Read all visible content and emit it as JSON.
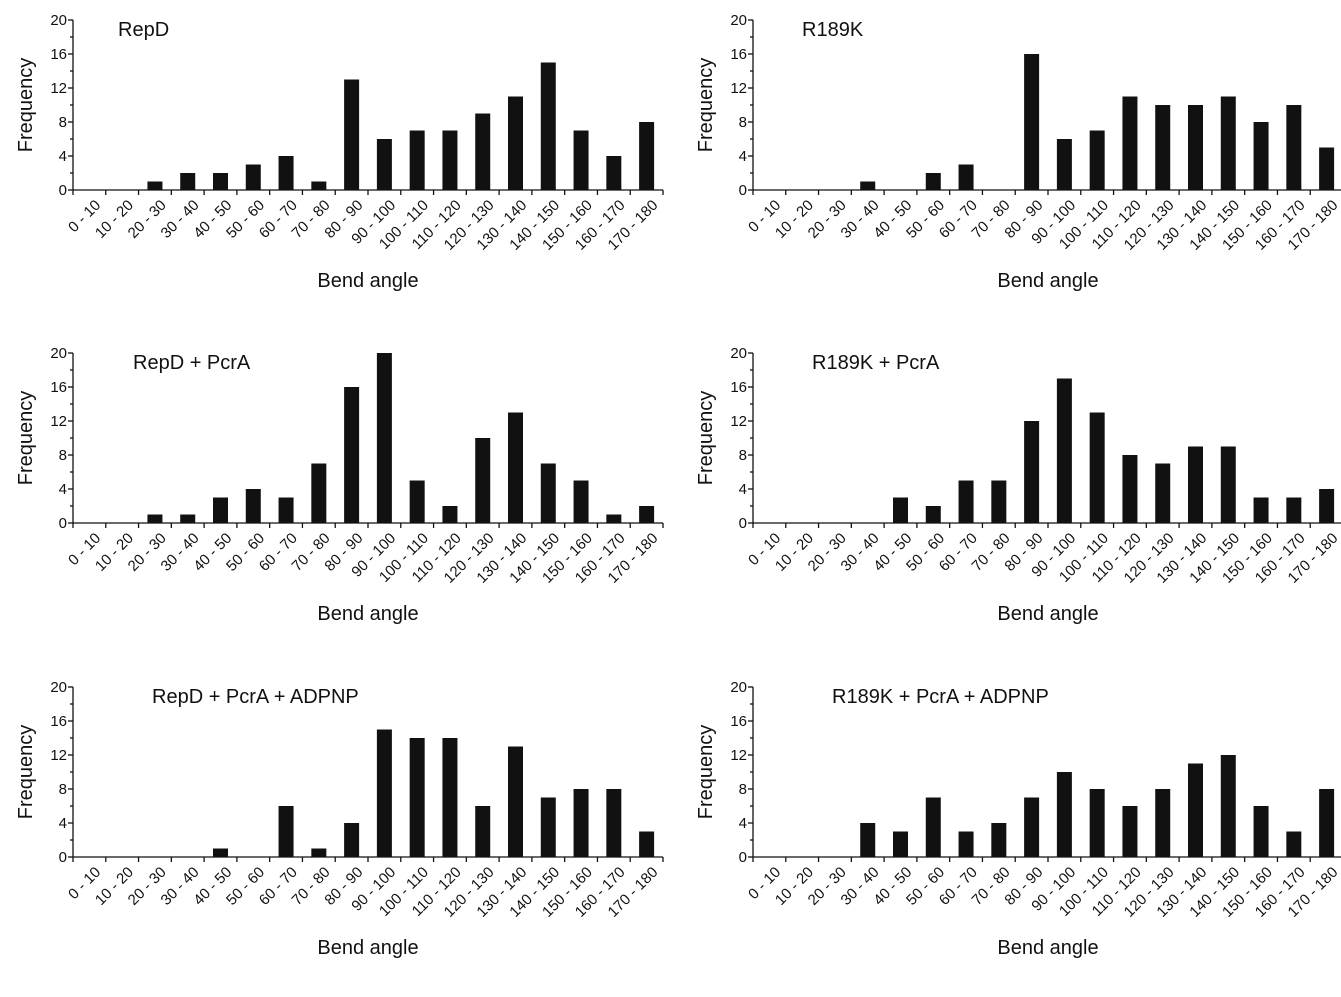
{
  "chart_data": [
    {
      "type": "bar",
      "title": "RepD",
      "xlabel": "Bend angle",
      "ylabel": "Frequency",
      "ylim": [
        0,
        20
      ],
      "yticks": [
        0,
        4,
        8,
        12,
        16,
        20
      ],
      "categories": [
        "0 - 10",
        "10 - 20",
        "20 - 30",
        "30 - 40",
        "40 - 50",
        "50 - 60",
        "60 - 70",
        "70 - 80",
        "80 - 90",
        "90 - 100",
        "100 - 110",
        "110 - 120",
        "120 - 130",
        "130 - 140",
        "140 - 150",
        "150 - 160",
        "160 - 170",
        "170 - 180"
      ],
      "values": [
        0,
        0,
        1,
        2,
        2,
        3,
        4,
        1,
        13,
        6,
        7,
        7,
        9,
        11,
        15,
        7,
        4,
        8
      ]
    },
    {
      "type": "bar",
      "title": "R189K",
      "xlabel": "Bend angle",
      "ylabel": "Frequency",
      "ylim": [
        0,
        20
      ],
      "yticks": [
        0,
        4,
        8,
        12,
        16,
        20
      ],
      "categories": [
        "0 - 10",
        "10 - 20",
        "20 - 30",
        "30 - 40",
        "40 - 50",
        "50 - 60",
        "60 - 70",
        "70 - 80",
        "80 - 90",
        "90 - 100",
        "100 - 110",
        "110 - 120",
        "120 - 130",
        "130 - 140",
        "140 - 150",
        "150 - 160",
        "160 - 170",
        "170 - 180"
      ],
      "values": [
        0,
        0,
        0,
        1,
        0,
        2,
        3,
        0,
        16,
        6,
        7,
        11,
        10,
        10,
        11,
        8,
        10,
        5
      ]
    },
    {
      "type": "bar",
      "title": "RepD + PcrA",
      "xlabel": "Bend angle",
      "ylabel": "Frequency",
      "ylim": [
        0,
        20
      ],
      "yticks": [
        0,
        4,
        8,
        12,
        16,
        20
      ],
      "categories": [
        "0 - 10",
        "10 - 20",
        "20 - 30",
        "30 - 40",
        "40 - 50",
        "50 - 60",
        "60 - 70",
        "70 - 80",
        "80 - 90",
        "90 - 100",
        "100 - 110",
        "110 - 120",
        "120 - 130",
        "130 - 140",
        "140 - 150",
        "150 - 160",
        "160 - 170",
        "170 - 180"
      ],
      "values": [
        0,
        0,
        1,
        1,
        3,
        4,
        3,
        7,
        16,
        20,
        5,
        2,
        10,
        13,
        7,
        5,
        1,
        2
      ]
    },
    {
      "type": "bar",
      "title": "R189K + PcrA",
      "xlabel": "Bend angle",
      "ylabel": "Frequency",
      "ylim": [
        0,
        20
      ],
      "yticks": [
        0,
        4,
        8,
        12,
        16,
        20
      ],
      "categories": [
        "0 - 10",
        "10 - 20",
        "20 - 30",
        "30 - 40",
        "40 - 50",
        "50 - 60",
        "60 - 70",
        "70 - 80",
        "80 - 90",
        "90 - 100",
        "100 - 110",
        "110 - 120",
        "120 - 130",
        "130 - 140",
        "140 - 150",
        "150 - 160",
        "160 - 170",
        "170 - 180"
      ],
      "values": [
        0,
        0,
        0,
        0,
        3,
        2,
        5,
        5,
        12,
        17,
        13,
        8,
        7,
        9,
        9,
        3,
        3,
        4
      ]
    },
    {
      "type": "bar",
      "title": "RepD + PcrA + ADPNP",
      "xlabel": "Bend angle",
      "ylabel": "Frequency",
      "ylim": [
        0,
        20
      ],
      "yticks": [
        0,
        4,
        8,
        12,
        16,
        20
      ],
      "categories": [
        "0 - 10",
        "10 - 20",
        "20 - 30",
        "30 - 40",
        "40 - 50",
        "50 - 60",
        "60 - 70",
        "70 - 80",
        "80 - 90",
        "90 - 100",
        "100 - 110",
        "110 - 120",
        "120 - 130",
        "130 - 140",
        "140 - 150",
        "150 - 160",
        "160 - 170",
        "170 - 180"
      ],
      "values": [
        0,
        0,
        0,
        0,
        1,
        0,
        6,
        1,
        4,
        15,
        14,
        14,
        6,
        13,
        7,
        8,
        8,
        3
      ]
    },
    {
      "type": "bar",
      "title": "R189K + PcrA + ADPNP",
      "xlabel": "Bend angle",
      "ylabel": "Frequency",
      "ylim": [
        0,
        20
      ],
      "yticks": [
        0,
        4,
        8,
        12,
        16,
        20
      ],
      "categories": [
        "0 - 10",
        "10 - 20",
        "20 - 30",
        "30 - 40",
        "40 - 50",
        "50 - 60",
        "60 - 70",
        "70 - 80",
        "80 - 90",
        "90 - 100",
        "100 - 110",
        "110 - 120",
        "120 - 130",
        "130 - 140",
        "140 - 150",
        "150 - 160",
        "160 - 170",
        "170 - 180"
      ],
      "values": [
        0,
        0,
        0,
        4,
        3,
        7,
        3,
        4,
        7,
        10,
        8,
        6,
        8,
        11,
        12,
        6,
        3,
        8
      ]
    }
  ]
}
